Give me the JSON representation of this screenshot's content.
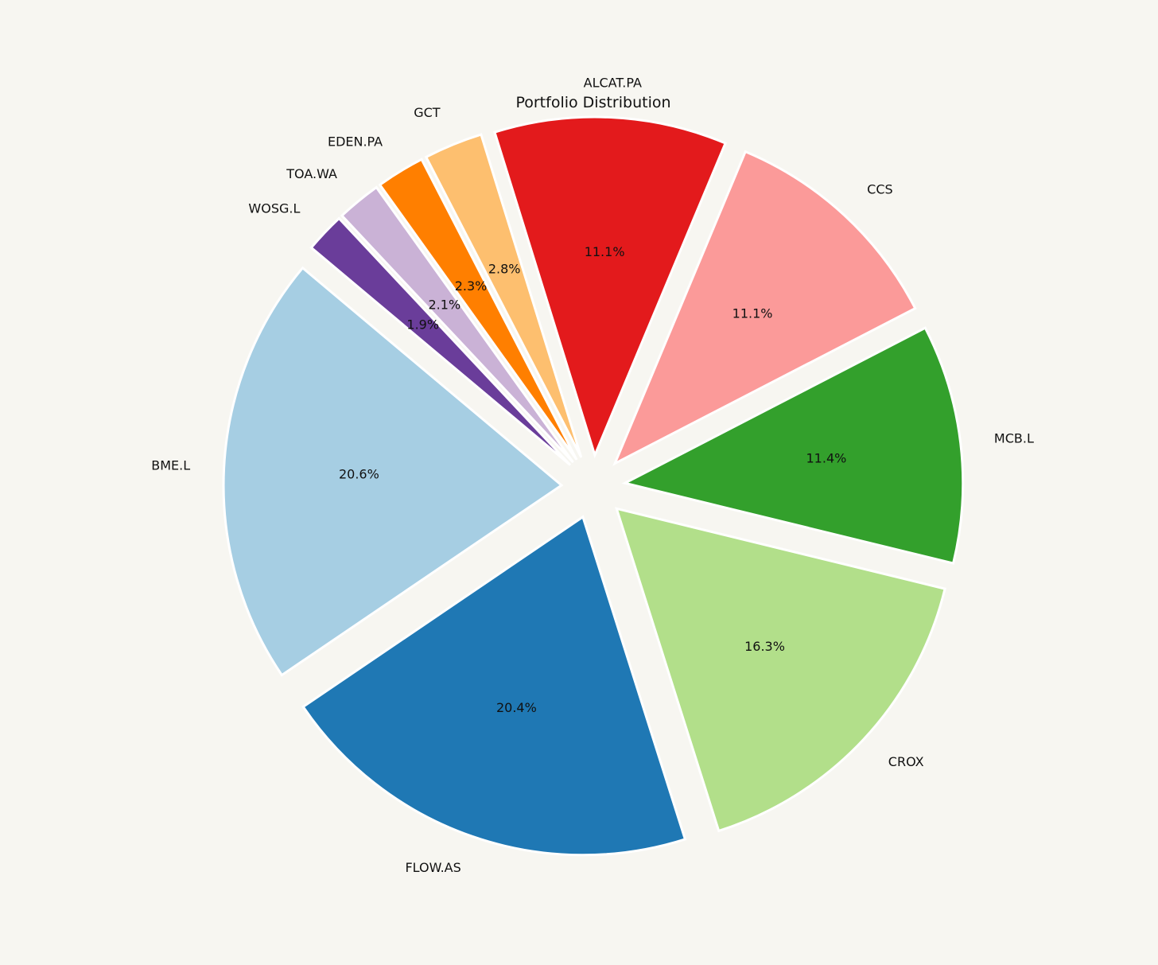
{
  "chart_data": {
    "type": "pie",
    "title": "Portfolio Distribution",
    "categories": [
      "BME.L",
      "FLOW.AS",
      "CROX",
      "MCB.L",
      "CCS",
      "ALCAT.PA",
      "GCT",
      "EDEN.PA",
      "TOA.WA",
      "WOSG.L"
    ],
    "values": [
      20.6,
      20.4,
      16.3,
      11.4,
      11.1,
      11.1,
      2.8,
      2.3,
      2.1,
      1.9
    ],
    "percent_labels": [
      "20.6%",
      "20.4%",
      "16.3%",
      "11.4%",
      "11.1%",
      "11.1%",
      "2.8%",
      "2.3%",
      "2.1%",
      "1.9%"
    ],
    "colors": [
      "#a6cee3",
      "#1f78b4",
      "#b2df8a",
      "#33a02c",
      "#fb9a99",
      "#e31a1c",
      "#fdbf6f",
      "#ff7f00",
      "#cab2d6",
      "#6a3d9a"
    ],
    "start_angle_deg": 140,
    "counterclock": true,
    "exploded": true,
    "legend": "none",
    "background": "#f7f6f1"
  }
}
